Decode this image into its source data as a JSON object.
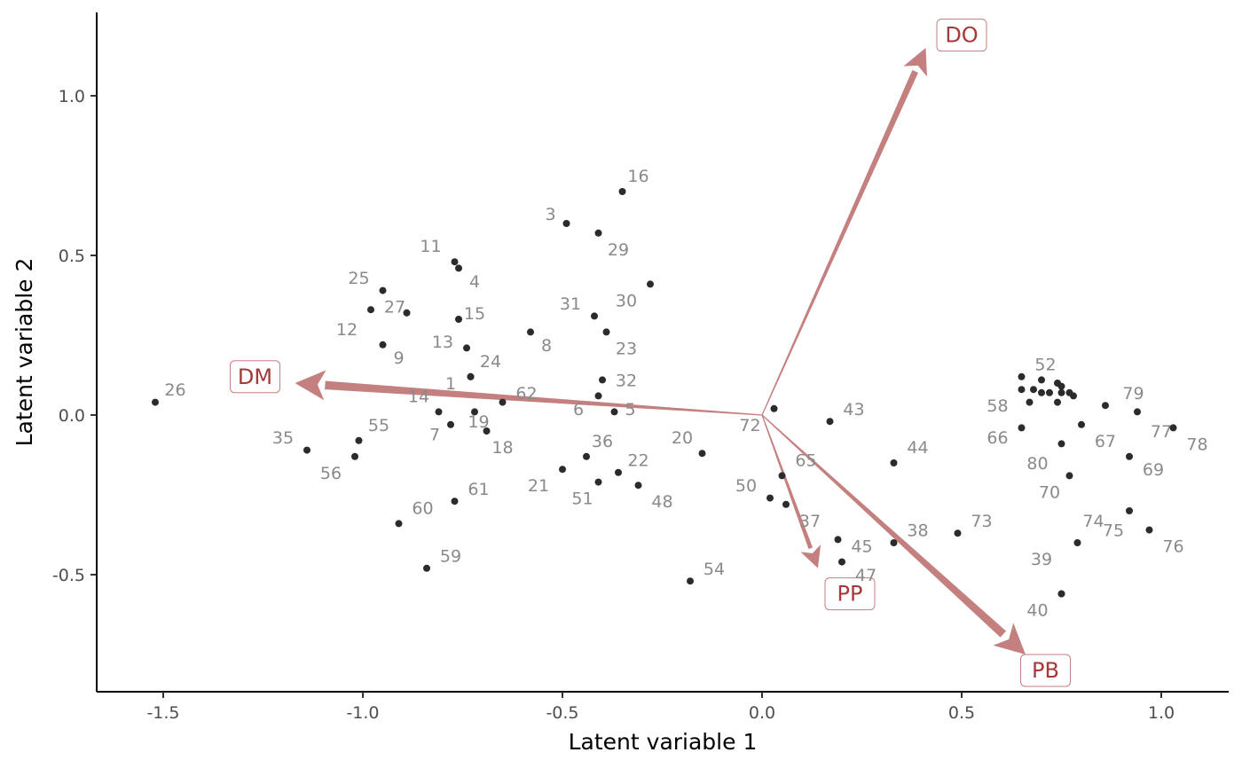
{
  "chart_data": {
    "type": "scatter",
    "subtype": "biplot",
    "xlabel": "Latent variable 1",
    "ylabel": "Latent variable 2",
    "xlim": [
      -1.65,
      1.17
    ],
    "ylim": [
      -0.86,
      1.26
    ],
    "x_ticks": [
      -1.5,
      -1.0,
      -0.5,
      0.0,
      0.5,
      1.0
    ],
    "x_tick_labels": [
      "-1.5",
      "-1.0",
      "-0.5",
      "0.0",
      "0.5",
      "1.0"
    ],
    "y_ticks": [
      -0.5,
      0.0,
      0.5,
      1.0
    ],
    "y_tick_labels": [
      "-0.5",
      "0.0",
      "0.5",
      "1.0"
    ],
    "grid": false,
    "colors": {
      "point": "#2b2b2b",
      "point_label": "#8a8a8a",
      "arrow": "#c47f7f",
      "arrow_label": "#a33a3a"
    },
    "points": [
      {
        "label": "1",
        "x": -0.73,
        "y": 0.12,
        "lx": -0.78,
        "ly": 0.1
      },
      {
        "label": "3",
        "x": -0.49,
        "y": 0.6,
        "lx": -0.53,
        "ly": 0.63
      },
      {
        "label": "4",
        "x": -0.76,
        "y": 0.46,
        "lx": -0.72,
        "ly": 0.42
      },
      {
        "label": "5",
        "x": -0.37,
        "y": 0.01,
        "lx": -0.33,
        "ly": 0.02
      },
      {
        "label": "6",
        "x": -0.41,
        "y": 0.06,
        "lx": -0.46,
        "ly": 0.02
      },
      {
        "label": "7",
        "x": -0.78,
        "y": -0.03,
        "lx": -0.82,
        "ly": -0.06
      },
      {
        "label": "8",
        "x": -0.58,
        "y": 0.26,
        "lx": -0.54,
        "ly": 0.22
      },
      {
        "label": "9",
        "x": -0.95,
        "y": 0.22,
        "lx": -0.91,
        "ly": 0.18
      },
      {
        "label": "11",
        "x": -0.77,
        "y": 0.48,
        "lx": -0.83,
        "ly": 0.53
      },
      {
        "label": "12",
        "x": -0.98,
        "y": 0.33,
        "lx": -1.04,
        "ly": 0.27
      },
      {
        "label": "13",
        "x": -0.74,
        "y": 0.21,
        "lx": -0.8,
        "ly": 0.23
      },
      {
        "label": "14",
        "x": -0.81,
        "y": 0.01,
        "lx": -0.86,
        "ly": 0.06
      },
      {
        "label": "15",
        "x": -0.76,
        "y": 0.3,
        "lx": -0.72,
        "ly": 0.32
      },
      {
        "label": "16",
        "x": -0.35,
        "y": 0.7,
        "lx": -0.31,
        "ly": 0.75
      },
      {
        "label": "18",
        "x": -0.69,
        "y": -0.05,
        "lx": -0.65,
        "ly": -0.1
      },
      {
        "label": "19",
        "x": -0.72,
        "y": 0.01,
        "lx": -0.71,
        "ly": -0.02
      },
      {
        "label": "20",
        "x": -0.15,
        "y": -0.12,
        "lx": -0.2,
        "ly": -0.07
      },
      {
        "label": "21",
        "x": -0.5,
        "y": -0.17,
        "lx": -0.56,
        "ly": -0.22
      },
      {
        "label": "22",
        "x": -0.36,
        "y": -0.18,
        "lx": -0.31,
        "ly": -0.14
      },
      {
        "label": "23",
        "x": -0.39,
        "y": 0.26,
        "lx": -0.34,
        "ly": 0.21
      },
      {
        "label": "24",
        "x": -0.73,
        "y": 0.12,
        "lx": -0.68,
        "ly": 0.17
      },
      {
        "label": "25",
        "x": -0.95,
        "y": 0.39,
        "lx": -1.01,
        "ly": 0.43
      },
      {
        "label": "26",
        "x": -1.52,
        "y": 0.04,
        "lx": -1.47,
        "ly": 0.08
      },
      {
        "label": "27",
        "x": -0.89,
        "y": 0.32,
        "lx": -0.92,
        "ly": 0.34
      },
      {
        "label": "29",
        "x": -0.41,
        "y": 0.57,
        "lx": -0.36,
        "ly": 0.52
      },
      {
        "label": "30",
        "x": -0.28,
        "y": 0.41,
        "lx": -0.34,
        "ly": 0.36
      },
      {
        "label": "31",
        "x": -0.42,
        "y": 0.31,
        "lx": -0.48,
        "ly": 0.35
      },
      {
        "label": "32",
        "x": -0.4,
        "y": 0.11,
        "lx": -0.34,
        "ly": 0.11
      },
      {
        "label": "35",
        "x": -1.14,
        "y": -0.11,
        "lx": -1.2,
        "ly": -0.07
      },
      {
        "label": "36",
        "x": -0.44,
        "y": -0.13,
        "lx": -0.4,
        "ly": -0.08
      },
      {
        "label": "37",
        "x": 0.06,
        "y": -0.28,
        "lx": 0.12,
        "ly": -0.33
      },
      {
        "label": "38",
        "x": 0.33,
        "y": -0.4,
        "lx": 0.39,
        "ly": -0.36
      },
      {
        "label": "39",
        "x": 0.75,
        "y": -0.56,
        "lx": 0.7,
        "ly": -0.45
      },
      {
        "label": "40",
        "x": 0.75,
        "y": -0.56,
        "lx": 0.69,
        "ly": -0.61
      },
      {
        "label": "43",
        "x": 0.17,
        "y": -0.02,
        "lx": 0.23,
        "ly": 0.02
      },
      {
        "label": "44",
        "x": 0.33,
        "y": -0.15,
        "lx": 0.39,
        "ly": -0.1
      },
      {
        "label": "45",
        "x": 0.19,
        "y": -0.39,
        "lx": 0.25,
        "ly": -0.41
      },
      {
        "label": "47",
        "x": 0.2,
        "y": -0.46,
        "lx": 0.26,
        "ly": -0.5
      },
      {
        "label": "48",
        "x": -0.31,
        "y": -0.22,
        "lx": -0.25,
        "ly": -0.27
      },
      {
        "label": "50",
        "x": 0.02,
        "y": -0.26,
        "lx": -0.04,
        "ly": -0.22
      },
      {
        "label": "51",
        "x": -0.41,
        "y": -0.21,
        "lx": -0.45,
        "ly": -0.26
      },
      {
        "label": "52",
        "x": 0.74,
        "y": 0.1,
        "lx": 0.71,
        "ly": 0.16
      },
      {
        "label": "54",
        "x": -0.18,
        "y": -0.52,
        "lx": -0.12,
        "ly": -0.48
      },
      {
        "label": "55",
        "x": -1.01,
        "y": -0.08,
        "lx": -0.96,
        "ly": -0.03
      },
      {
        "label": "56",
        "x": -1.02,
        "y": -0.13,
        "lx": -1.08,
        "ly": -0.18
      },
      {
        "label": "58",
        "x": 0.67,
        "y": 0.04,
        "lx": 0.59,
        "ly": 0.03
      },
      {
        "label": "59",
        "x": -0.84,
        "y": -0.48,
        "lx": -0.78,
        "ly": -0.44
      },
      {
        "label": "60",
        "x": -0.91,
        "y": -0.34,
        "lx": -0.85,
        "ly": -0.29
      },
      {
        "label": "61",
        "x": -0.77,
        "y": -0.27,
        "lx": -0.71,
        "ly": -0.23
      },
      {
        "label": "62",
        "x": -0.65,
        "y": 0.04,
        "lx": -0.59,
        "ly": 0.07
      },
      {
        "label": "65",
        "x": 0.05,
        "y": -0.19,
        "lx": 0.11,
        "ly": -0.14
      },
      {
        "label": "66",
        "x": 0.65,
        "y": -0.04,
        "lx": 0.59,
        "ly": -0.07
      },
      {
        "label": "67",
        "x": 0.8,
        "y": -0.03,
        "lx": 0.86,
        "ly": -0.08
      },
      {
        "label": "69",
        "x": 0.92,
        "y": -0.13,
        "lx": 0.98,
        "ly": -0.17
      },
      {
        "label": "70",
        "x": 0.77,
        "y": -0.19,
        "lx": 0.72,
        "ly": -0.24
      },
      {
        "label": "72",
        "x": 0.03,
        "y": 0.02,
        "lx": -0.03,
        "ly": -0.03
      },
      {
        "label": "73",
        "x": 0.49,
        "y": -0.37,
        "lx": 0.55,
        "ly": -0.33
      },
      {
        "label": "74",
        "x": 0.79,
        "y": -0.4,
        "lx": 0.83,
        "ly": -0.33
      },
      {
        "label": "75",
        "x": 0.92,
        "y": -0.3,
        "lx": 0.88,
        "ly": -0.36
      },
      {
        "label": "76",
        "x": 0.97,
        "y": -0.36,
        "lx": 1.03,
        "ly": -0.41
      },
      {
        "label": "77",
        "x": 0.94,
        "y": 0.01,
        "lx": 1.0,
        "ly": -0.05
      },
      {
        "label": "78",
        "x": 1.03,
        "y": -0.04,
        "lx": 1.09,
        "ly": -0.09
      },
      {
        "label": "79",
        "x": 0.86,
        "y": 0.03,
        "lx": 0.93,
        "ly": 0.07
      },
      {
        "label": "80",
        "x": 0.75,
        "y": -0.09,
        "lx": 0.69,
        "ly": -0.15
      }
    ],
    "extra_points": [
      {
        "x": 0.65,
        "y": 0.12
      },
      {
        "x": 0.65,
        "y": 0.08
      },
      {
        "x": 0.68,
        "y": 0.08
      },
      {
        "x": 0.7,
        "y": 0.11
      },
      {
        "x": 0.7,
        "y": 0.07
      },
      {
        "x": 0.72,
        "y": 0.07
      },
      {
        "x": 0.74,
        "y": 0.04
      },
      {
        "x": 0.75,
        "y": 0.09
      },
      {
        "x": 0.75,
        "y": 0.07
      },
      {
        "x": 0.77,
        "y": 0.07
      },
      {
        "x": 0.78,
        "y": 0.06
      }
    ],
    "arrows": [
      {
        "label": "DO",
        "x": 0.41,
        "y": 1.15,
        "lx": 0.5,
        "ly": 1.19,
        "weight": 3
      },
      {
        "label": "DM",
        "x": -1.17,
        "y": 0.1,
        "lx": -1.27,
        "ly": 0.12,
        "weight": 4
      },
      {
        "label": "PB",
        "x": 0.66,
        "y": -0.75,
        "lx": 0.71,
        "ly": -0.8,
        "weight": 4
      },
      {
        "label": "PP",
        "x": 0.14,
        "y": -0.48,
        "lx": 0.22,
        "ly": -0.56,
        "weight": 2
      }
    ]
  }
}
